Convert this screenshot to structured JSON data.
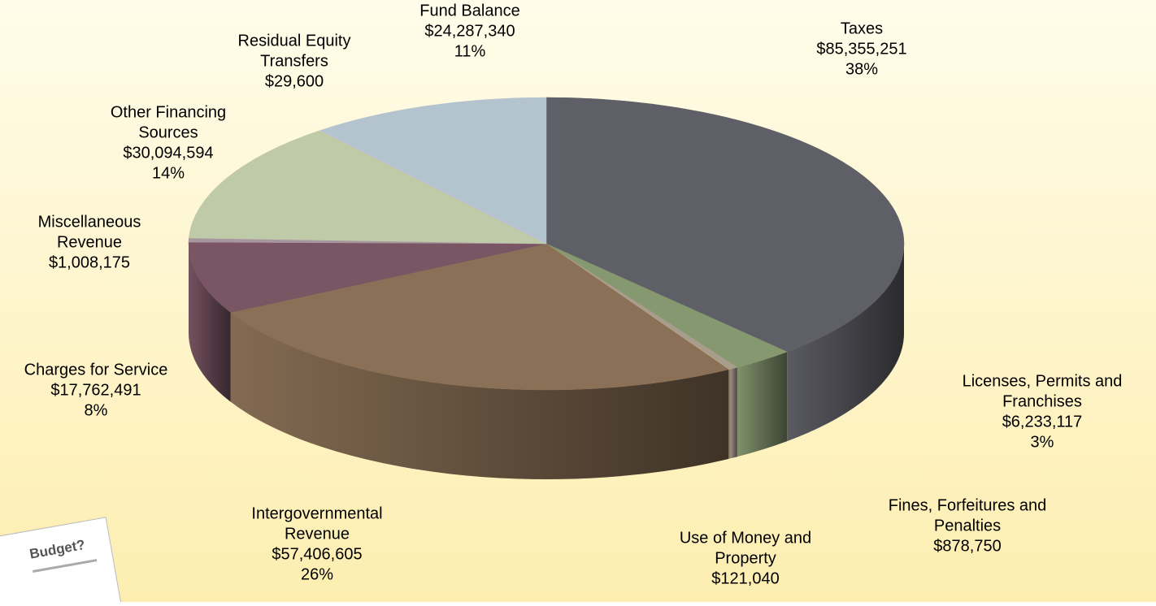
{
  "chart_data": {
    "type": "pie3d",
    "categories": [
      [
        "Taxes"
      ],
      [
        "Licenses, Permits and",
        "Franchises"
      ],
      [
        "Fines, Forfeitures and",
        "Penalties"
      ],
      [
        "Use of Money and",
        "Property"
      ],
      [
        "Intergovernmental",
        "Revenue"
      ],
      [
        "Charges for Service"
      ],
      [
        "Miscellaneous",
        "Revenue"
      ],
      [
        "Other Financing",
        "Sources"
      ],
      [
        "Residual Equity",
        "Transfers"
      ],
      [
        "Fund Balance"
      ]
    ],
    "values": [
      85355251,
      6233117,
      878750,
      121040,
      57406605,
      17762491,
      1008175,
      30094594,
      29600,
      24287340
    ],
    "value_labels": [
      "$85,355,251",
      "$6,233,117",
      "$878,750",
      "$121,040",
      "$57,406,605",
      "$17,762,491",
      "$1,008,175",
      "$30,094,594",
      "$29,600",
      "$24,287,340"
    ],
    "percent_labels": [
      "38%",
      "3%",
      null,
      null,
      "26%",
      "8%",
      null,
      "14%",
      null,
      "11%"
    ],
    "colors": [
      "#5f5f67",
      "#869870",
      "#a89c8c",
      "#b5a27e",
      "#8a7056",
      "#7a5664",
      "#a8969e",
      "#bfcaa9",
      "#cdd3d2",
      "#b4c4cf"
    ]
  },
  "note": "Budget?"
}
